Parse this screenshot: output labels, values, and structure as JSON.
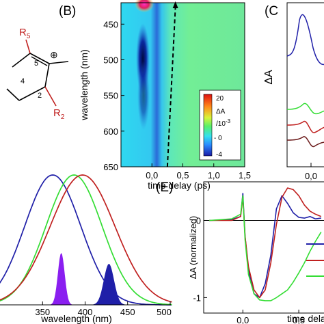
{
  "panels": {
    "B": {
      "label": "(B)"
    },
    "C": {
      "label": "(C"
    },
    "E": {
      "label": "(E)"
    }
  },
  "molecule": {
    "r5": "R",
    "r5_sub": "5",
    "r2": "R",
    "r2_sub": "2",
    "pos5": "5",
    "pos4": "4",
    "pos2": "2",
    "charge": "⊕"
  },
  "colors": {
    "blue": "#1f1fa8",
    "red": "#c0201f",
    "green": "#33dd33",
    "violet": "#8a1ff0",
    "darkred": "#6b1a1a"
  },
  "chart_data": [
    {
      "type": "heatmap",
      "panel": "B",
      "xlabel": "time delay (ps)",
      "ylabel": "wavelength (nm)",
      "xlim": [
        -0.5,
        1.5
      ],
      "ylim": [
        650,
        420
      ],
      "xticks": [
        "0,0",
        "0,5",
        "1,0",
        "1,5"
      ],
      "xtick_values": [
        0,
        0.5,
        1.0,
        1.5
      ],
      "yticks": [
        "450",
        "500",
        "550",
        "600",
        "650"
      ],
      "ytick_values": [
        450,
        500,
        550,
        600,
        650
      ],
      "colorbar": {
        "labels": [
          "20",
          "ΔA",
          "/10",
          "-3",
          "- 0",
          "-4"
        ]
      },
      "arrow": {
        "from": [
          0.25,
          650
        ],
        "to": [
          0.38,
          420
        ]
      }
    },
    {
      "type": "line",
      "panel": "C",
      "ylabel": "ΔA",
      "xticks": [
        "0,0"
      ],
      "series": [
        {
          "color": "blue"
        },
        {
          "color": "green"
        },
        {
          "color": "red"
        },
        {
          "color": "darkred"
        }
      ]
    },
    {
      "type": "line",
      "panel": "D",
      "xlabel": "wavelength (nm)",
      "xlim": [
        300,
        500
      ],
      "xticks": [
        "350",
        "400",
        "450",
        "500"
      ],
      "xtick_values": [
        350,
        400,
        450,
        500
      ],
      "series": [
        {
          "color": "blue",
          "peak": 362,
          "width": 33
        },
        {
          "color": "green",
          "peak": 387,
          "width": 33
        },
        {
          "color": "red",
          "peak": 397,
          "width": 38
        },
        {
          "color": "violet",
          "filled": true,
          "peak": 372,
          "width": 4
        },
        {
          "color": "blue",
          "filled": true,
          "peak": 428,
          "width": 6
        }
      ]
    },
    {
      "type": "line",
      "panel": "E",
      "xlabel": "time delay",
      "ylabel": "ΔA (normalized)",
      "xlim": [
        -0.35,
        0.75
      ],
      "ylim": [
        -1.2,
        0.5
      ],
      "xticks": [
        "0,0",
        "0,5"
      ],
      "xtick_values": [
        0.0,
        0.5
      ],
      "yticks": [
        "0",
        "-1"
      ],
      "ytick_values": [
        0,
        -1
      ],
      "series": [
        {
          "color": "blue",
          "x": [
            -0.3,
            -0.1,
            -0.02,
            0.0,
            0.02,
            0.05,
            0.1,
            0.15,
            0.2,
            0.25,
            0.3,
            0.35,
            0.4,
            0.45,
            0.5,
            0.55,
            0.6,
            0.65,
            0.7
          ],
          "y": [
            0.0,
            0.01,
            0.05,
            0.35,
            -0.2,
            -0.65,
            -0.95,
            -1.0,
            -0.82,
            -0.45,
            0.15,
            0.32,
            0.22,
            0.1,
            0.04,
            0.03,
            0.05,
            0.02,
            0.03
          ]
        },
        {
          "color": "red",
          "x": [
            -0.3,
            -0.1,
            -0.02,
            0.0,
            0.02,
            0.05,
            0.1,
            0.15,
            0.2,
            0.25,
            0.3,
            0.35,
            0.4,
            0.45,
            0.5,
            0.55,
            0.6,
            0.65,
            0.7
          ],
          "y": [
            0.0,
            0.0,
            0.05,
            0.3,
            -0.2,
            -0.6,
            -0.9,
            -1.0,
            -0.9,
            -0.55,
            -0.05,
            0.3,
            0.42,
            0.4,
            0.32,
            0.2,
            0.12,
            0.08,
            0.05
          ]
        },
        {
          "color": "green",
          "x": [
            -0.3,
            -0.1,
            -0.02,
            0.0,
            0.02,
            0.05,
            0.1,
            0.15,
            0.2,
            0.25,
            0.3,
            0.35,
            0.4,
            0.45,
            0.5,
            0.55,
            0.6,
            0.65,
            0.7
          ],
          "y": [
            0.0,
            0.02,
            0.08,
            0.32,
            -0.25,
            -0.7,
            -0.95,
            -1.03,
            -1.04,
            -1.04,
            -1.0,
            -0.95,
            -0.9,
            -0.8,
            -0.68,
            -0.55,
            -0.4,
            -0.27,
            -0.15
          ]
        }
      ]
    }
  ]
}
